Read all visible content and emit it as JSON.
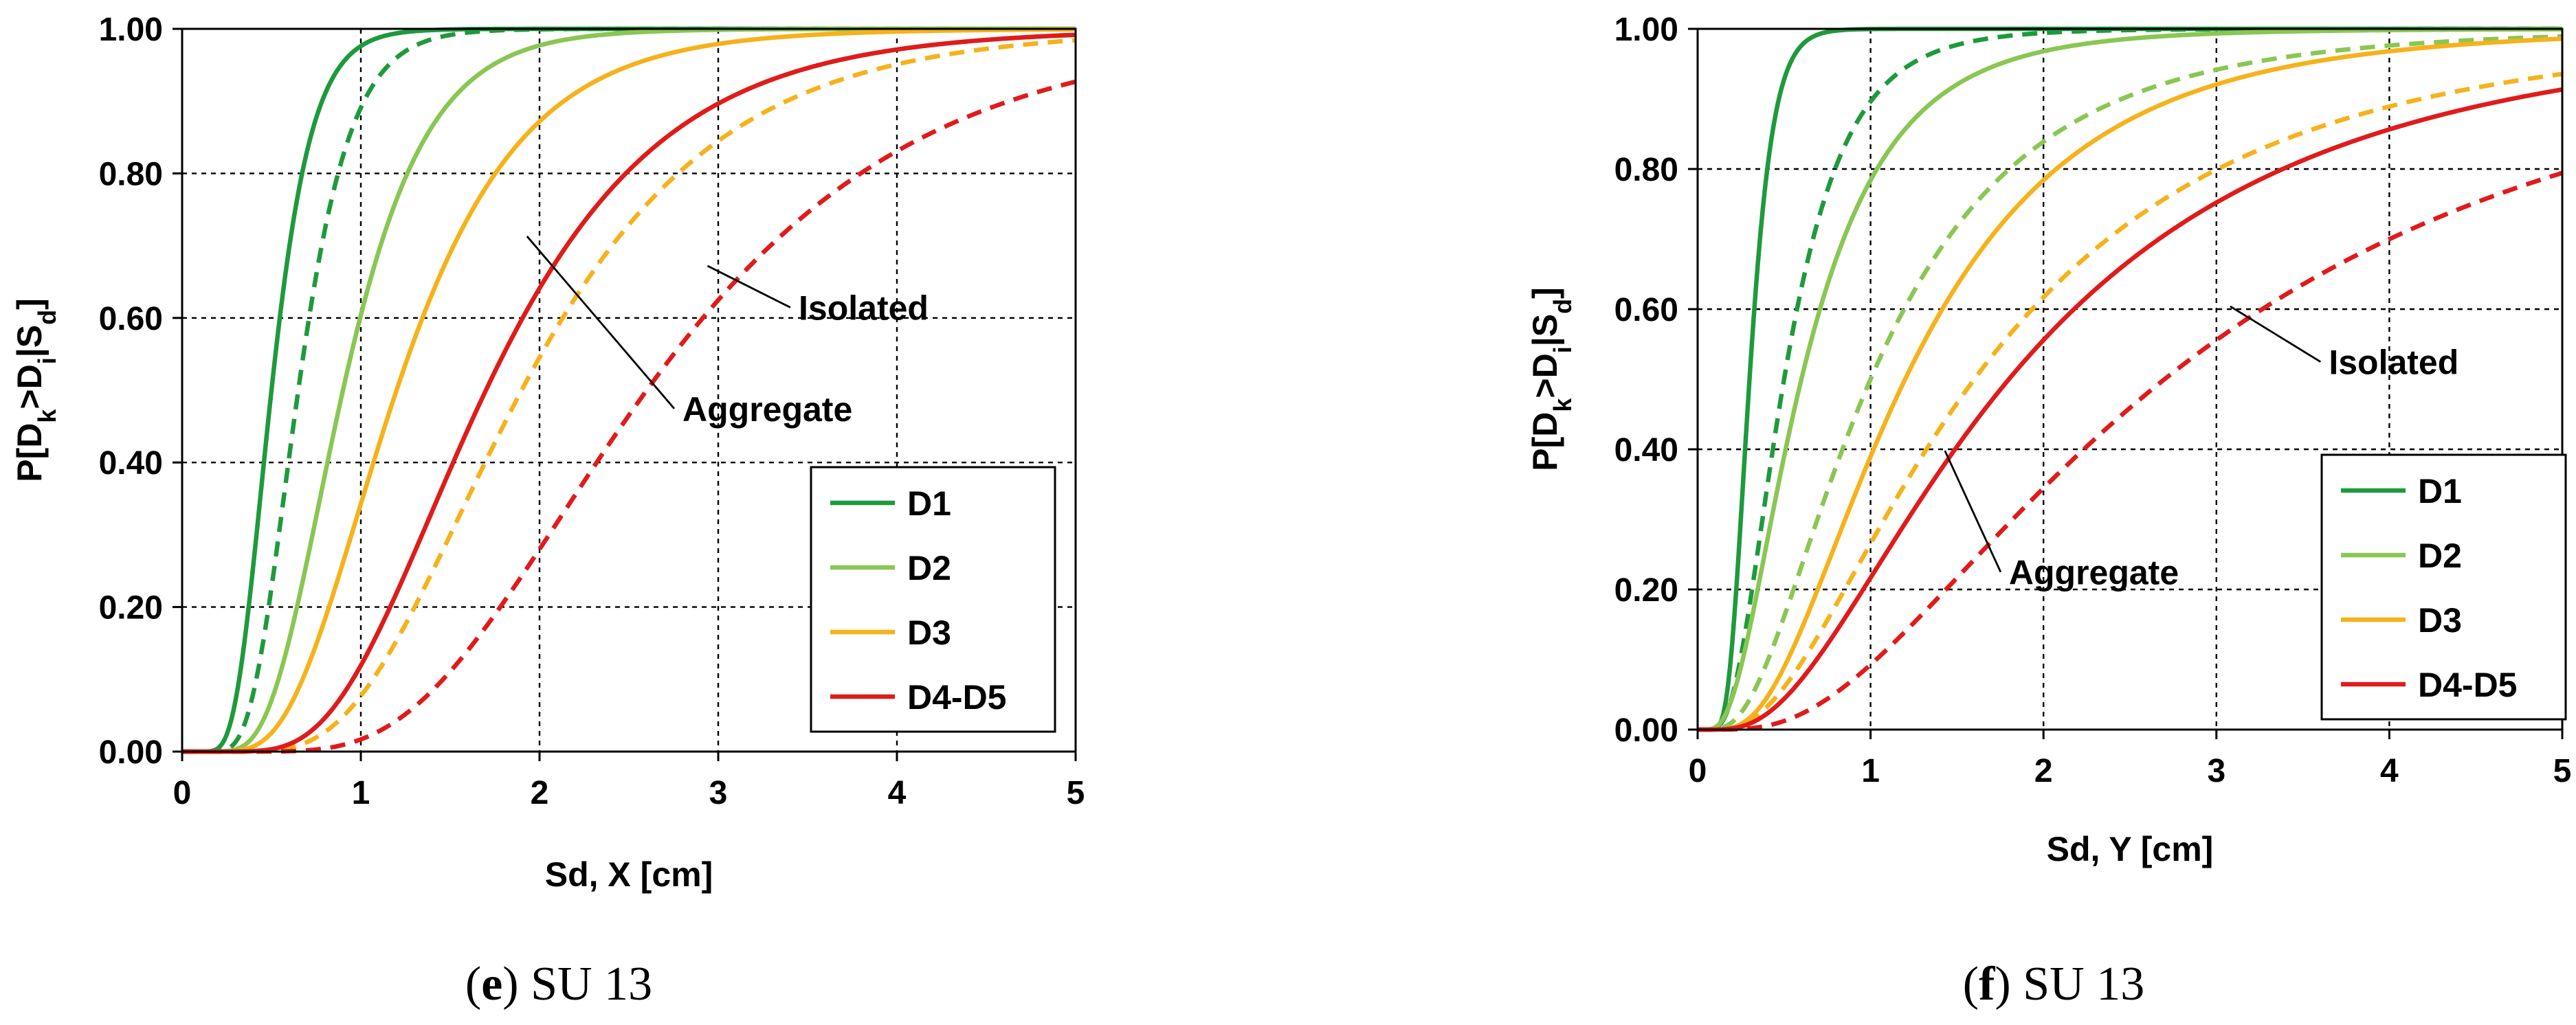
{
  "figure": {
    "colors": {
      "D1": "#1e9a3c",
      "D2": "#8ac653",
      "D3": "#f5b21c",
      "D4-D5": "#e01b1b"
    },
    "line_styles": {
      "Aggregate": "solid",
      "Isolated": "dashed"
    }
  },
  "chart_data": [
    {
      "type": "line",
      "panel": "e",
      "caption": {
        "open": "(",
        "letter": "e",
        "close": ")",
        "text": " SU 13"
      },
      "title": "",
      "xlabel": "Sd, X [cm]",
      "ylabel": "P[D_k>D_i|S_d]",
      "xlim": [
        0,
        5
      ],
      "ylim": [
        0,
        1
      ],
      "x_ticks": [
        "0",
        "1",
        "2",
        "3",
        "4",
        "5"
      ],
      "y_ticks": [
        "0.00",
        "0.20",
        "0.40",
        "0.60",
        "0.80",
        "1.00"
      ],
      "grid": true,
      "legend": {
        "placement": "bottom-right",
        "entries": [
          "D1",
          "D2",
          "D3",
          "D4-D5"
        ]
      },
      "annotations": [
        {
          "text": "Isolated",
          "target_series": "D4-D5 Isolated",
          "at": [
            2.94,
            0.672
          ],
          "label_at": [
            3.45,
            0.605
          ]
        },
        {
          "text": "Aggregate",
          "target_series": "D4-D5 Aggregate",
          "at": [
            1.93,
            0.713
          ],
          "label_at": [
            2.8,
            0.465
          ]
        }
      ],
      "series": [
        {
          "name": "D1 Aggregate",
          "state": "D1",
          "type": "Aggregate",
          "median": 0.5,
          "beta": 0.35,
          "x": [
            0,
            0.2,
            0.3,
            0.4,
            0.5,
            0.6,
            0.7,
            0.8,
            1.0,
            1.5,
            2,
            3,
            4,
            5
          ],
          "y": [
            0,
            0.004,
            0.073,
            0.262,
            0.5,
            0.698,
            0.832,
            0.91,
            0.976,
            0.999,
            1,
            1,
            1,
            1
          ]
        },
        {
          "name": "D1 Isolated",
          "state": "D1",
          "type": "Isolated",
          "median": 0.65,
          "beta": 0.35,
          "x": [
            0,
            0.2,
            0.3,
            0.4,
            0.5,
            0.65,
            0.8,
            1.0,
            1.2,
            1.5,
            2,
            3,
            5
          ],
          "y": [
            0,
            0.0004,
            0.014,
            0.083,
            0.227,
            0.5,
            0.724,
            0.89,
            0.96,
            0.992,
            0.999,
            1,
            1
          ]
        },
        {
          "name": "D2 Aggregate",
          "state": "D2",
          "type": "Aggregate",
          "median": 0.9,
          "beta": 0.4,
          "x": [
            0,
            0.3,
            0.5,
            0.7,
            0.9,
            1.0,
            1.2,
            1.5,
            2,
            2.5,
            3,
            4,
            5
          ],
          "y": [
            0,
            0.003,
            0.071,
            0.265,
            0.5,
            0.603,
            0.765,
            0.899,
            0.977,
            0.995,
            0.999,
            1,
            1
          ]
        },
        {
          "name": "D2 Isolated",
          "state": "D2",
          "type": "Isolated",
          "median": 1.7,
          "beta": 0.45,
          "x": [
            0,
            0.5,
            0.8,
            1.0,
            1.3,
            1.7,
            2,
            2.5,
            3,
            4,
            5
          ],
          "y": [
            0,
            0.003,
            0.047,
            0.12,
            0.276,
            0.5,
            0.64,
            0.804,
            0.897,
            0.971,
            0.992
          ]
        },
        {
          "name": "D3 Aggregate",
          "state": "D3",
          "type": "Aggregate",
          "median": 1.2,
          "beta": 0.45,
          "x": [
            0,
            0.4,
            0.6,
            0.8,
            1.0,
            1.2,
            1.5,
            2,
            2.5,
            3,
            4,
            5
          ],
          "y": [
            0,
            0.007,
            0.062,
            0.184,
            0.343,
            0.5,
            0.686,
            0.871,
            0.949,
            0.979,
            0.996,
            0.999
          ]
        },
        {
          "name": "D3 Isolated",
          "state": "D3",
          "type": "Isolated",
          "median": 1.9,
          "beta": 0.45,
          "x": [
            0,
            0.6,
            0.8,
            1.0,
            1.5,
            1.9,
            2.5,
            3,
            4,
            5
          ],
          "y": [
            0,
            0.005,
            0.027,
            0.077,
            0.3,
            0.5,
            0.728,
            0.845,
            0.951,
            0.984
          ]
        },
        {
          "name": "D4-D5 Aggregate",
          "state": "D4-D5",
          "type": "Aggregate",
          "median": 1.7,
          "beta": 0.45,
          "x": [
            0,
            0.5,
            0.8,
            1.0,
            1.3,
            1.7,
            2,
            2.5,
            3,
            4,
            5
          ],
          "y": [
            0,
            0.003,
            0.047,
            0.12,
            0.276,
            0.5,
            0.64,
            0.804,
            0.897,
            0.971,
            0.992
          ]
        },
        {
          "name": "D4-D5 Isolated",
          "state": "D4-D5",
          "type": "Isolated",
          "median": 2.6,
          "beta": 0.45,
          "x": [
            0,
            0.8,
            1.0,
            1.5,
            2,
            2.6,
            3,
            3.5,
            4,
            4.5,
            5
          ],
          "y": [
            0,
            0.004,
            0.017,
            0.111,
            0.28,
            0.5,
            0.624,
            0.746,
            0.831,
            0.889,
            0.927
          ]
        }
      ]
    },
    {
      "type": "line",
      "panel": "f",
      "caption": {
        "open": "(",
        "letter": "f",
        "close": ")",
        "text": " SU 13"
      },
      "title": "",
      "xlabel": "Sd, Y [cm]",
      "ylabel": "P[D_k>D_i|S_d]",
      "xlim": [
        0,
        5
      ],
      "ylim": [
        0,
        1
      ],
      "x_ticks": [
        "0",
        "1",
        "2",
        "3",
        "4",
        "5"
      ],
      "y_ticks": [
        "0.00",
        "0.20",
        "0.40",
        "0.60",
        "0.80",
        "1.00"
      ],
      "grid": true,
      "legend": {
        "placement": "bottom-right",
        "entries": [
          "D1",
          "D2",
          "D3",
          "D4-D5"
        ]
      },
      "annotations": [
        {
          "text": "Isolated",
          "target_series": "D4-D5 Isolated",
          "at": [
            3.08,
            0.604
          ],
          "label_at": [
            3.65,
            0.515
          ]
        },
        {
          "text": "Aggregate",
          "target_series": "D4-D5 Aggregate",
          "at": [
            1.43,
            0.398
          ],
          "label_at": [
            1.8,
            0.215
          ]
        }
      ],
      "series": [
        {
          "name": "D1 Aggregate",
          "state": "D1",
          "type": "Aggregate",
          "median": 0.3,
          "beta": 0.35,
          "x": [
            0,
            0.1,
            0.15,
            0.2,
            0.25,
            0.3,
            0.35,
            0.4,
            0.5,
            0.6,
            0.8,
            1,
            5
          ],
          "y": [
            0,
            0.001,
            0.024,
            0.123,
            0.302,
            0.5,
            0.671,
            0.794,
            0.928,
            0.976,
            0.997,
            1,
            1
          ]
        },
        {
          "name": "D1 Isolated",
          "state": "D1",
          "type": "Isolated",
          "median": 0.5,
          "beta": 0.55,
          "x": [
            0,
            0.1,
            0.2,
            0.3,
            0.4,
            0.5,
            0.7,
            1.0,
            1.5,
            2,
            3,
            5
          ],
          "y": [
            0,
            0.002,
            0.048,
            0.177,
            0.343,
            0.5,
            0.73,
            0.894,
            0.977,
            0.994,
            1,
            1
          ]
        },
        {
          "name": "D2 Aggregate",
          "state": "D2",
          "type": "Aggregate",
          "median": 0.6,
          "beta": 0.65,
          "x": [
            0,
            0.1,
            0.2,
            0.4,
            0.6,
            0.8,
            1.0,
            1.5,
            2,
            3,
            4,
            5
          ],
          "y": [
            0,
            0.003,
            0.046,
            0.266,
            0.5,
            0.671,
            0.784,
            0.92,
            0.968,
            0.993,
            0.998,
            0.999
          ]
        },
        {
          "name": "D2 Isolated",
          "state": "D2",
          "type": "Isolated",
          "median": 1.0,
          "beta": 0.7,
          "x": [
            0,
            0.2,
            0.4,
            0.6,
            0.8,
            1.0,
            1.5,
            2,
            3,
            4,
            5
          ],
          "y": [
            0,
            0.011,
            0.095,
            0.233,
            0.376,
            0.5,
            0.718,
            0.838,
            0.941,
            0.976,
            0.989
          ]
        },
        {
          "name": "D3 Aggregate",
          "state": "D3",
          "type": "Aggregate",
          "median": 1.2,
          "beta": 0.65,
          "x": [
            0,
            0.2,
            0.4,
            0.6,
            0.8,
            1.2,
            1.5,
            2,
            3,
            4,
            5
          ],
          "y": [
            0,
            0.003,
            0.046,
            0.143,
            0.266,
            0.5,
            0.634,
            0.784,
            0.92,
            0.968,
            0.986
          ]
        },
        {
          "name": "D3 Isolated",
          "state": "D3",
          "type": "Isolated",
          "median": 1.6,
          "beta": 0.75,
          "x": [
            0,
            0.3,
            0.5,
            0.8,
            1.2,
            1.6,
            2,
            2.5,
            3,
            4,
            5
          ],
          "y": [
            0,
            0.013,
            0.061,
            0.178,
            0.35,
            0.5,
            0.616,
            0.724,
            0.799,
            0.889,
            0.935
          ]
        },
        {
          "name": "D4-D5 Aggregate",
          "state": "D4-D5",
          "type": "Aggregate",
          "median": 1.8,
          "beta": 0.75,
          "x": [
            0,
            0.4,
            0.6,
            0.8,
            1.0,
            1.4,
            1.8,
            2.2,
            3,
            4,
            5
          ],
          "y": [
            0,
            0.022,
            0.071,
            0.14,
            0.217,
            0.369,
            0.5,
            0.603,
            0.752,
            0.858,
            0.912
          ]
        },
        {
          "name": "D4-D5 Isolated",
          "state": "D4-D5",
          "type": "Isolated",
          "median": 2.7,
          "beta": 0.75,
          "x": [
            0,
            0.6,
            0.8,
            1.0,
            1.5,
            2,
            2.7,
            3,
            3.5,
            4,
            5
          ],
          "y": [
            0,
            0.022,
            0.053,
            0.093,
            0.217,
            0.345,
            0.5,
            0.557,
            0.637,
            0.699,
            0.793
          ]
        }
      ]
    }
  ]
}
